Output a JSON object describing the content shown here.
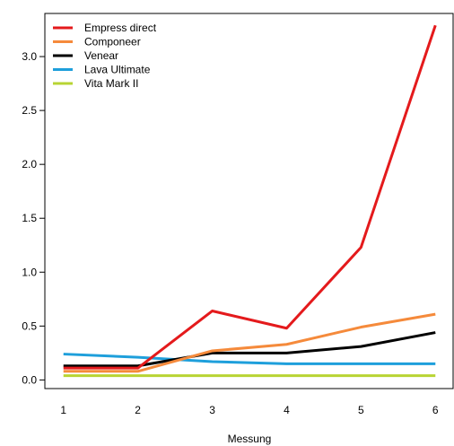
{
  "chart_data": {
    "type": "line",
    "title": "",
    "xlabel": "Messung",
    "ylabel": "",
    "x": [
      1,
      2,
      3,
      4,
      5,
      6
    ],
    "x_tick_labels": [
      "1",
      "2",
      "3",
      "4",
      "5",
      "6"
    ],
    "xlim": [
      0.75,
      6.25
    ],
    "ylim": [
      -0.08,
      3.4
    ],
    "y_ticks": [
      0.0,
      0.5,
      1.0,
      1.5,
      2.0,
      2.5,
      3.0
    ],
    "y_tick_labels": [
      "0.0",
      "0.5",
      "1.0",
      "1.5",
      "2.0",
      "2.5",
      "3.0"
    ],
    "grid": false,
    "legend_position": "top-left",
    "series": [
      {
        "name": "Empress direct",
        "color": "#E41A1C",
        "values": [
          0.11,
          0.11,
          0.64,
          0.48,
          1.23,
          3.29
        ]
      },
      {
        "name": "Componeer",
        "color": "#F58A3B",
        "values": [
          0.08,
          0.08,
          0.27,
          0.33,
          0.49,
          0.61
        ]
      },
      {
        "name": "Venear",
        "color": "#000000",
        "values": [
          0.13,
          0.13,
          0.25,
          0.25,
          0.31,
          0.44
        ]
      },
      {
        "name": "Lava Ultimate",
        "color": "#1E9FDB",
        "values": [
          0.24,
          0.21,
          0.17,
          0.15,
          0.15,
          0.15
        ]
      },
      {
        "name": "Vita Mark II",
        "color": "#B8D433",
        "values": [
          0.04,
          0.04,
          0.04,
          0.04,
          0.04,
          0.04
        ]
      }
    ]
  }
}
